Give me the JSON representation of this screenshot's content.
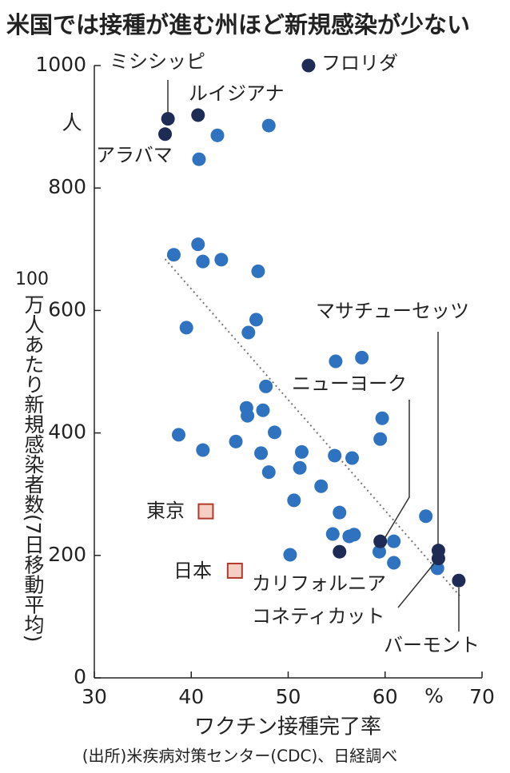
{
  "chart_data": {
    "type": "scatter",
    "title": "米国では接種が進む州ほど新規感染が少ない",
    "xlabel": "ワクチン接種完了率",
    "xunit": "%",
    "ylabel_parts": [
      "100",
      "万人あたり新規感染者数(7日移動平均)"
    ],
    "yunit": "人",
    "source": "(出所)米疾病対策センター(CDC)、日経調べ",
    "xlim": [
      30,
      70
    ],
    "xticks": [
      30,
      40,
      50,
      60,
      70
    ],
    "ylim": [
      0,
      1000
    ],
    "yticks": [
      0,
      200,
      400,
      600,
      800,
      1000
    ],
    "series": [
      {
        "color": "#2f72bf",
        "marker": "circle",
        "x": [
          42.7,
          48.0,
          40.8,
          38.2,
          40.7,
          41.2,
          43.1,
          46.9,
          39.5,
          45.9,
          46.7,
          54.9,
          57.6,
          47.7,
          59.7,
          45.7,
          45.8,
          47.4,
          48.6,
          38.7,
          44.6,
          59.5,
          41.2,
          51.4,
          47.2,
          54.8,
          56.6,
          51.2,
          48.0,
          53.4,
          50.6,
          55.3,
          64.2,
          56.8,
          54.6,
          56.3,
          60.9,
          59.4,
          50.2,
          60.9,
          65.4
        ],
        "y": [
          886,
          902,
          847,
          691,
          708,
          680,
          683,
          664,
          572,
          564,
          585,
          517,
          523,
          476,
          424,
          441,
          428,
          437,
          401,
          397,
          386,
          390,
          372,
          369,
          367,
          363,
          359,
          343,
          336,
          313,
          290,
          270,
          264,
          234,
          235,
          231,
          223,
          206,
          201,
          188,
          179
        ]
      },
      {
        "color": "#1e2b55",
        "marker": "circle",
        "x": [
          52.1,
          37.6,
          40.7,
          37.3,
          65.5,
          65.5,
          67.6,
          59.5,
          55.3
        ],
        "y": [
          1000,
          913,
          919,
          888,
          208,
          195,
          159,
          223,
          206
        ],
        "labels": [
          "フロリダ",
          "ミシシッピ",
          "ルイジアナ",
          "アラバマ",
          "マサチューセッツ",
          "コネティカット",
          "バーモント",
          "ニューヨーク",
          "カリフォルニア"
        ]
      },
      {
        "color": "#f6cfc4",
        "stroke": "#b23a2a",
        "marker": "square",
        "x": [
          41.5,
          44.5
        ],
        "y": [
          272,
          175
        ],
        "labels": [
          "東京",
          "日本"
        ]
      }
    ],
    "trend": {
      "x": [
        37.3,
        67.7
      ],
      "y": [
        684,
        134
      ],
      "color": "#777"
    }
  }
}
